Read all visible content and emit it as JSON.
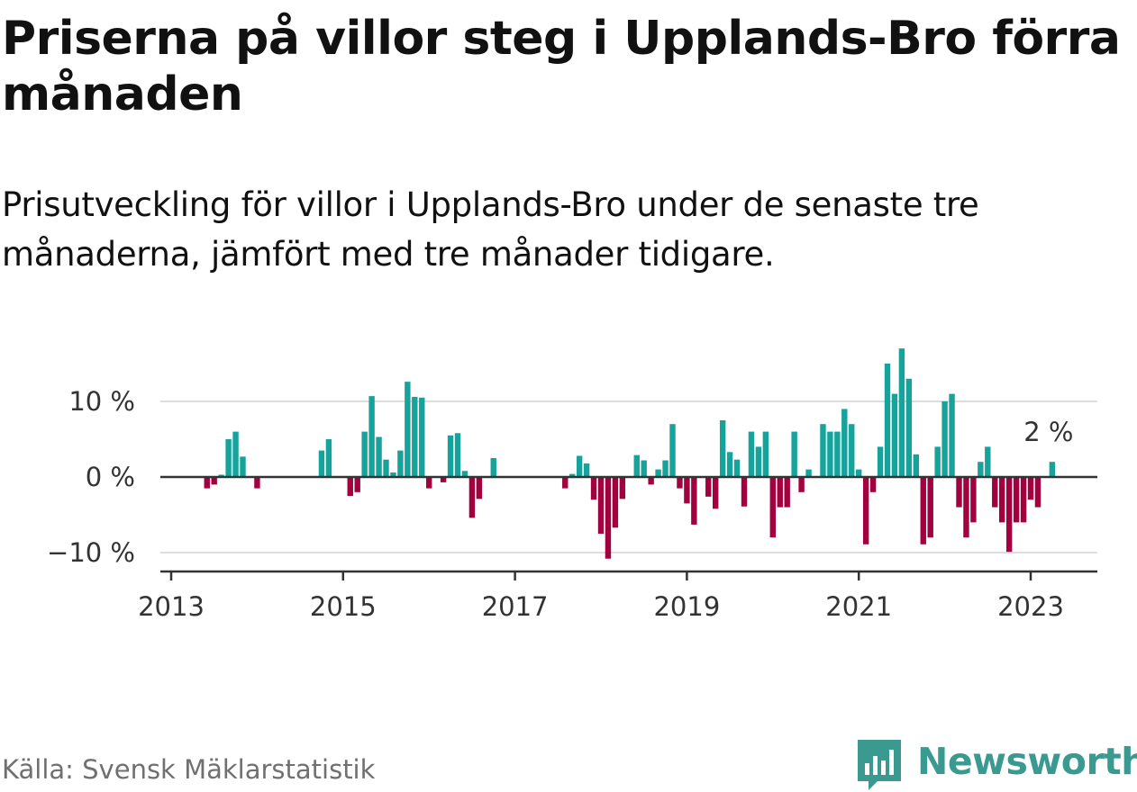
{
  "title": "Priserna på villor steg i Upplands-Bro förra månaden",
  "subtitle": "Prisutveckling för villor i Upplands-Bro under de senaste tre månaderna, jämfört med tre månader tidigare.",
  "source": "Källa: Svensk Mäklarstatistik",
  "brand": {
    "name": "Newsworthy",
    "icon": "newsworthy-logo-icon"
  },
  "colors": {
    "positive": "#15a39b",
    "negative": "#a3003f",
    "grid": "#dddddd",
    "axis": "#333333",
    "brand": "#3a9a90"
  },
  "chart_data": {
    "type": "bar",
    "title": "Priserna på villor steg i Upplands-Bro förra månaden",
    "subtitle": "Prisutveckling för villor i Upplands-Bro under de senaste tre månaderna, jämfört med tre månader tidigare.",
    "xlabel": "",
    "ylabel": "",
    "unit": "%",
    "ylim": [
      -12,
      17
    ],
    "y_ticks": [
      {
        "value": -10,
        "label": "−10 %"
      },
      {
        "value": 0,
        "label": "0 %"
      },
      {
        "value": 10,
        "label": "10 %"
      }
    ],
    "x_ticks": [
      "2013",
      "2015",
      "2017",
      "2019",
      "2021",
      "2023"
    ],
    "start": "2013-01",
    "end": "2023-04",
    "annotation": {
      "label": "2 %",
      "month": "2023-04"
    },
    "values": [
      0,
      0,
      0,
      0,
      0,
      -1.5,
      -1,
      0.3,
      5,
      6,
      2.7,
      0,
      -1.5,
      0,
      0,
      0,
      0,
      0,
      0,
      0,
      0,
      3.5,
      5,
      0,
      0,
      -2.5,
      -2,
      6,
      10.7,
      5.3,
      2.3,
      0.6,
      3.5,
      12.6,
      10.6,
      10.5,
      -1.5,
      0,
      -0.7,
      5.5,
      5.8,
      0.8,
      -5.4,
      -2.9,
      0,
      2.5,
      0,
      0,
      0,
      0,
      0,
      0,
      0,
      0,
      0,
      -1.5,
      0.4,
      2.8,
      1.8,
      -3,
      -7.5,
      -10.8,
      -6.7,
      -2.9,
      0,
      2.9,
      2.2,
      -1,
      1,
      2.2,
      7,
      -1.5,
      -3.5,
      -6.3,
      0,
      -2.6,
      -4.2,
      7.5,
      3.3,
      2.3,
      -3.9,
      6,
      4,
      6,
      -8,
      -4,
      -4,
      6,
      -2,
      1,
      0,
      7,
      6,
      6,
      9,
      7,
      1,
      -8.9,
      -2,
      4,
      15,
      11,
      17,
      13,
      3,
      -8.9,
      -8,
      4,
      10,
      11,
      -4,
      -8,
      -6,
      2,
      4,
      -4,
      -6,
      -9.9,
      -6,
      -6,
      -3,
      -4,
      0,
      2
    ]
  }
}
